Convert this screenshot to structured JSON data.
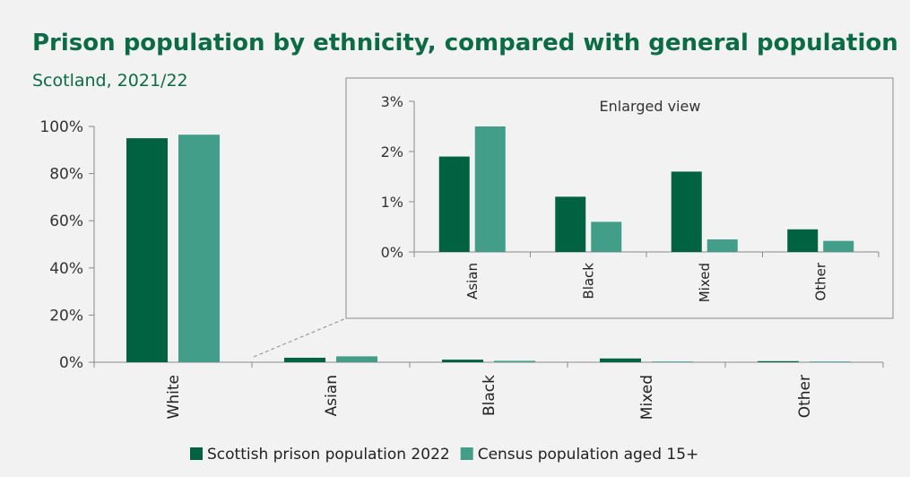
{
  "title": "Prison population by ethnicity, compared with general population",
  "subtitle": "Scotland, 2021/22",
  "chart_data": [
    {
      "type": "bar",
      "title": "Prison population by ethnicity, compared with general population",
      "subtitle": "Scotland, 2021/22",
      "categories": [
        "White",
        "Asian",
        "Black",
        "Mixed",
        "Other"
      ],
      "series": [
        {
          "name": "Scottish prison population 2022",
          "values": [
            95.0,
            1.9,
            1.1,
            1.6,
            0.45
          ],
          "color": "#006241"
        },
        {
          "name": "Census population aged 15+",
          "values": [
            96.5,
            2.5,
            0.6,
            0.25,
            0.22
          ],
          "color": "#429e88"
        }
      ],
      "ylim": [
        0,
        100
      ],
      "yticks": [
        "0%",
        "20%",
        "40%",
        "60%",
        "80%",
        "100%"
      ],
      "ytick_values": [
        0,
        20,
        40,
        60,
        80,
        100
      ],
      "legend": "bottom",
      "grid": false
    },
    {
      "type": "bar",
      "annotation": "Enlarged view",
      "categories": [
        "Asian",
        "Black",
        "Mixed",
        "Other"
      ],
      "series": [
        {
          "name": "Scottish prison population 2022",
          "values": [
            1.9,
            1.1,
            1.6,
            0.45
          ],
          "color": "#006241"
        },
        {
          "name": "Census population aged 15+",
          "values": [
            2.5,
            0.6,
            0.25,
            0.22
          ],
          "color": "#429e88"
        }
      ],
      "ylim": [
        0,
        3
      ],
      "yticks": [
        "0%",
        "1%",
        "2%",
        "3%"
      ],
      "ytick_values": [
        0,
        1,
        2,
        3
      ],
      "grid": false
    }
  ]
}
